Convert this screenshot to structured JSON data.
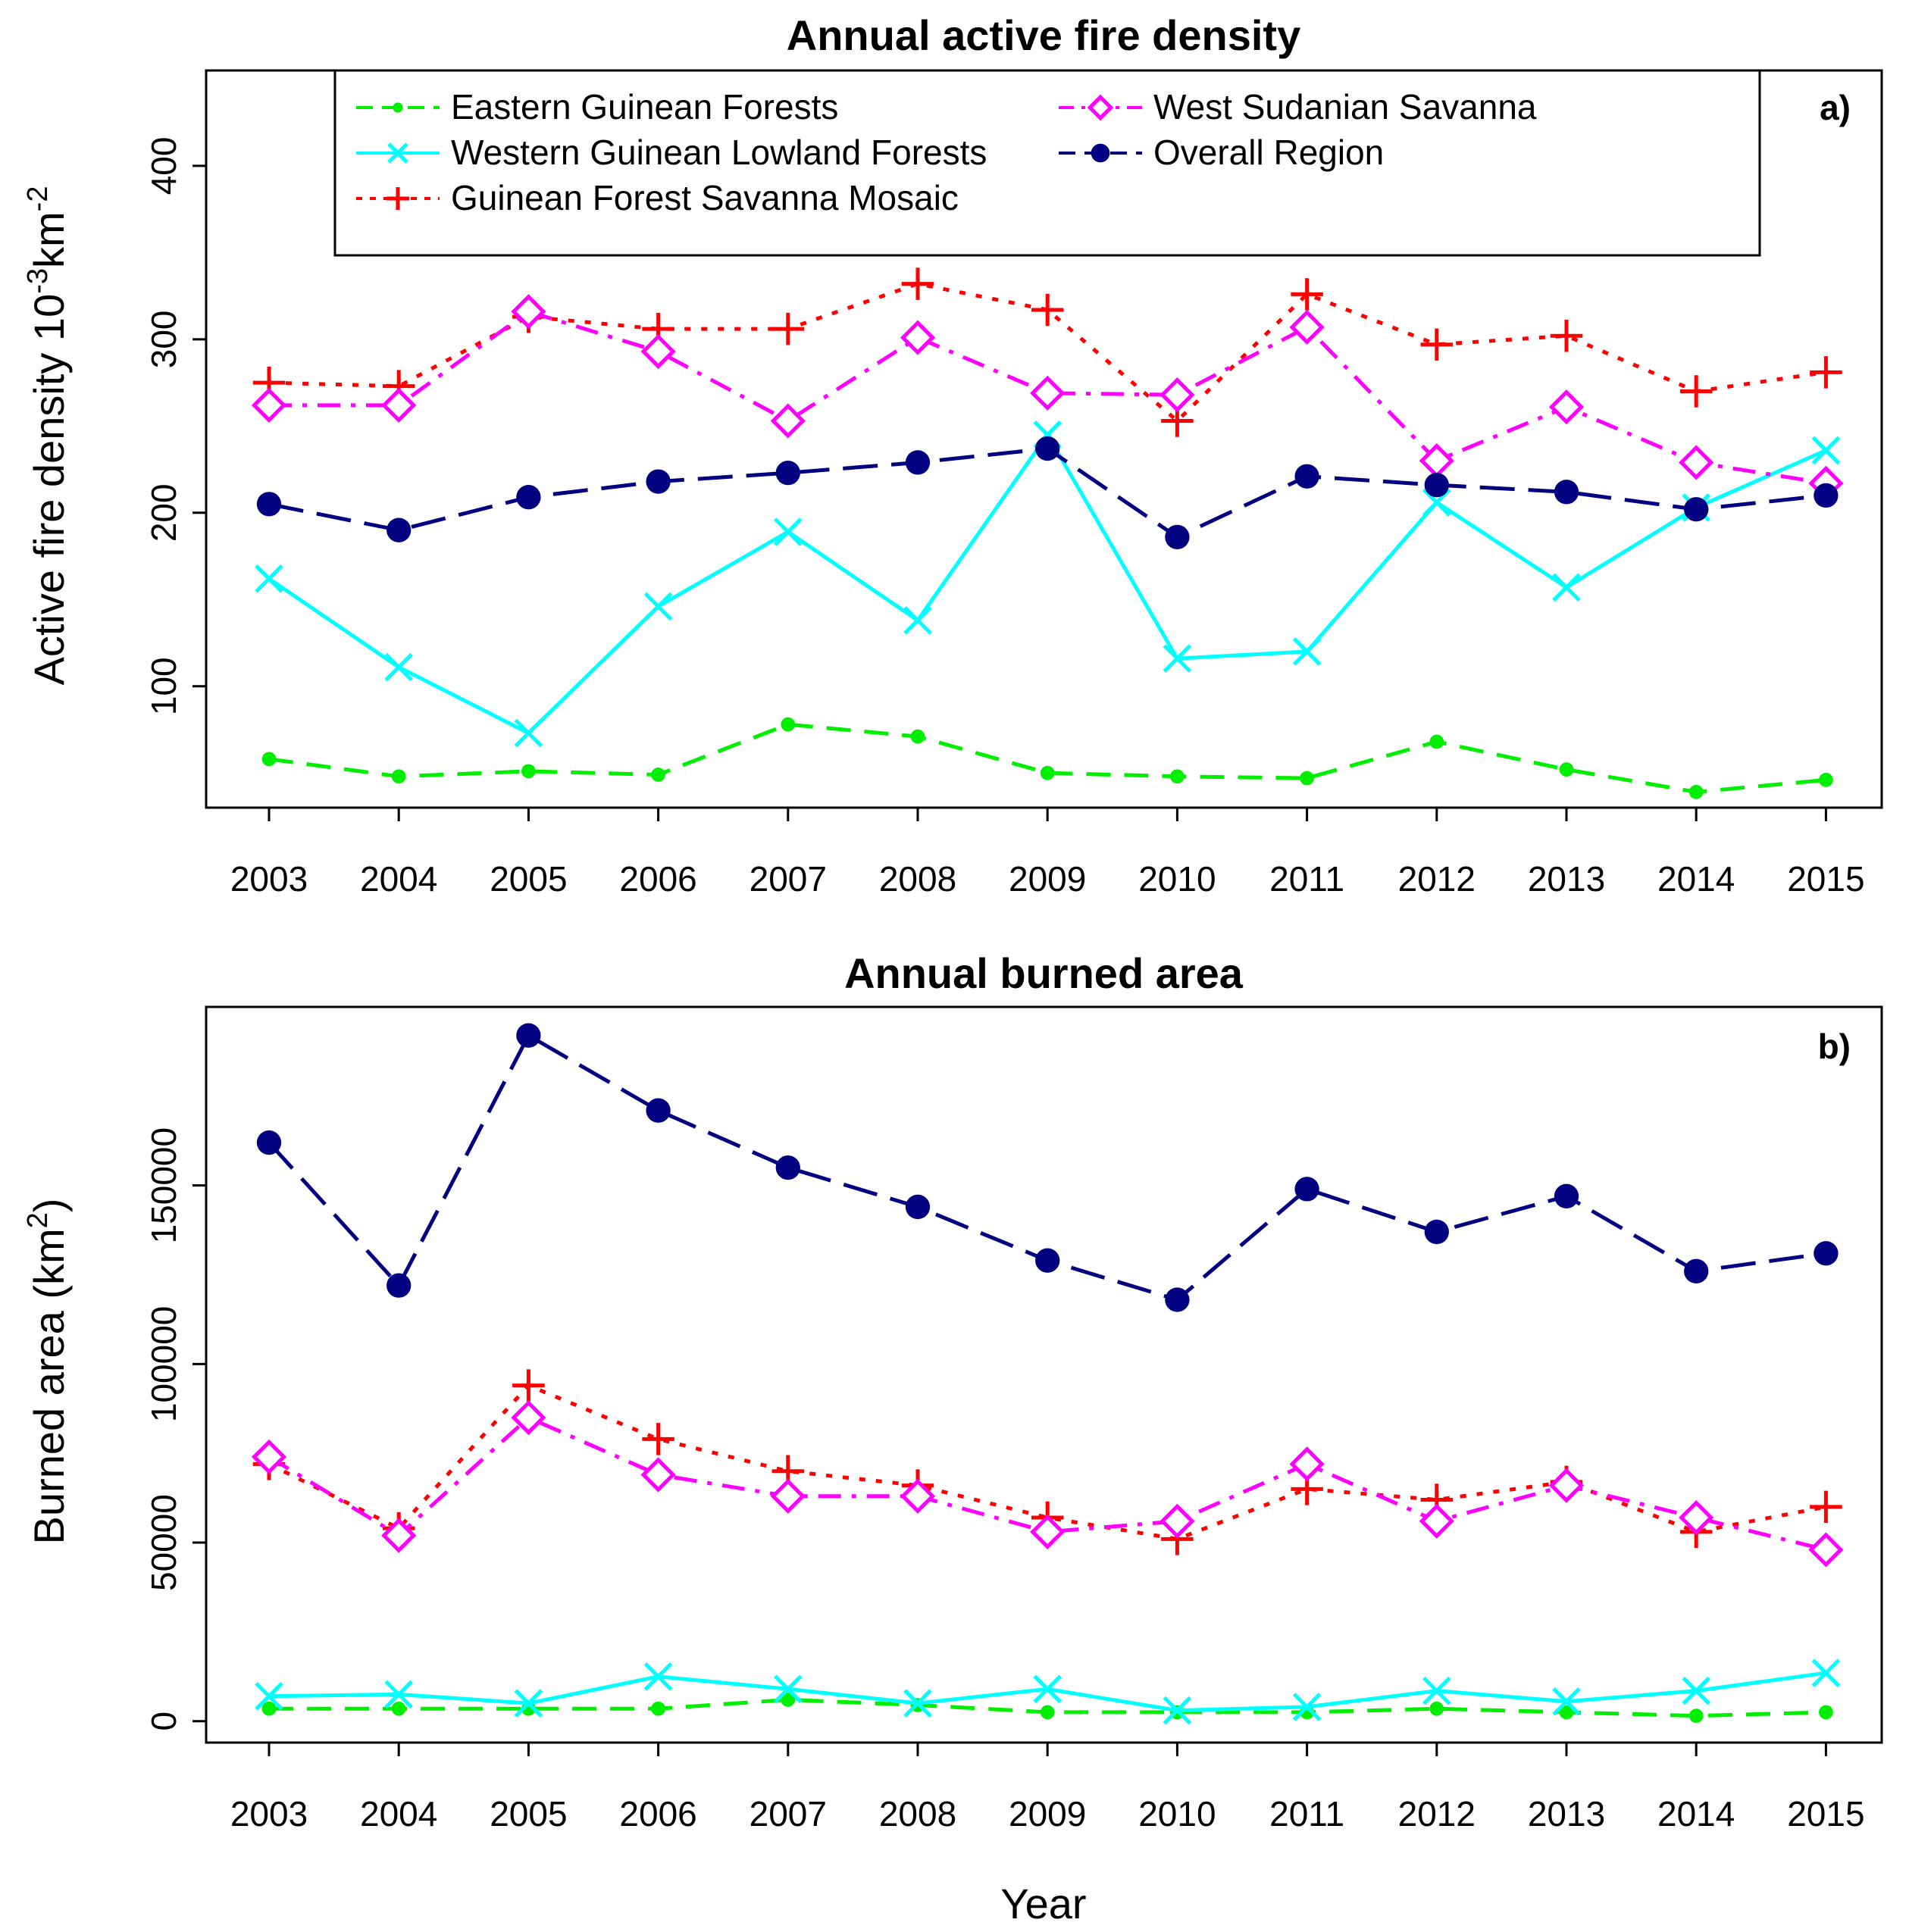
{
  "chart_data": [
    {
      "panel": "a)",
      "type": "line",
      "title": "Annual active fire density",
      "xlabel": "",
      "ylabel": "Active fire density 10^-3 km^-2",
      "ylabel_parts": {
        "main": "Active fire density 10",
        "exp1": "-3",
        "mid": "km",
        "exp2": "-2"
      },
      "categories": [
        "2003",
        "2004",
        "2005",
        "2006",
        "2007",
        "2008",
        "2009",
        "2010",
        "2011",
        "2012",
        "2013",
        "2014",
        "2015"
      ],
      "ylim": [
        30,
        455
      ],
      "yticks": [
        "100",
        "200",
        "300",
        "400"
      ],
      "legend_position": "top",
      "series": [
        {
          "name": "Eastern Guinean Forests",
          "color": "#00ee00",
          "marker": "dot",
          "dash": "dash",
          "values": [
            58,
            48,
            51,
            49,
            78,
            71,
            50,
            48,
            47,
            68,
            52,
            39,
            46
          ]
        },
        {
          "name": "Western Guinean Lowland Forests",
          "color": "#00ffff",
          "marker": "x",
          "dash": "solid",
          "values": [
            162,
            111,
            73,
            146,
            189,
            138,
            245,
            116,
            120,
            206,
            157,
            203,
            236
          ]
        },
        {
          "name": "Guinean Forest Savanna Mosaic",
          "color": "#ff0000",
          "marker": "plus",
          "dash": "dot",
          "values": [
            275,
            273,
            313,
            306,
            306,
            332,
            317,
            253,
            326,
            297,
            302,
            270,
            281
          ]
        },
        {
          "name": "West Sudanian Savanna",
          "color": "#ff00ff",
          "marker": "diamond",
          "dash": "dashdot",
          "values": [
            262,
            262,
            316,
            293,
            253,
            301,
            269,
            268,
            307,
            230,
            261,
            229,
            217
          ]
        },
        {
          "name": "Overall Region",
          "color": "#000080",
          "marker": "bigdot",
          "dash": "longdash",
          "values": [
            205,
            190,
            209,
            218,
            223,
            229,
            237,
            186,
            221,
            216,
            212,
            202,
            210
          ]
        }
      ]
    },
    {
      "panel": "b)",
      "type": "line",
      "title": "Annual burned area",
      "xlabel": "Year",
      "ylabel": "Burned area (km^2)",
      "ylabel_parts": {
        "main": "Burned area (km",
        "exp": "2",
        "end": ")"
      },
      "categories": [
        "2003",
        "2004",
        "2005",
        "2006",
        "2007",
        "2008",
        "2009",
        "2010",
        "2011",
        "2012",
        "2013",
        "2014",
        "2015"
      ],
      "ylim": [
        -6000,
        200000
      ],
      "yticks": [
        "0",
        "50000",
        "100000",
        "150000"
      ],
      "series": [
        {
          "name": "Eastern Guinean Forests",
          "color": "#00ee00",
          "marker": "dot",
          "dash": "dash",
          "values": [
            3500,
            3500,
            3500,
            3500,
            6000,
            4500,
            2500,
            2500,
            2500,
            3500,
            2500,
            1500,
            2500
          ]
        },
        {
          "name": "Western Guinean Lowland Forests",
          "color": "#00ffff",
          "marker": "x",
          "dash": "solid",
          "values": [
            7000,
            7500,
            5000,
            12500,
            9000,
            5000,
            9000,
            3000,
            4000,
            8500,
            5500,
            8500,
            13500
          ]
        },
        {
          "name": "Guinean Forest Savanna Mosaic",
          "color": "#ff0000",
          "marker": "plus",
          "dash": "dot",
          "values": [
            72000,
            54000,
            94000,
            79000,
            70000,
            66000,
            57000,
            51000,
            65000,
            62000,
            67000,
            53000,
            60000
          ]
        },
        {
          "name": "West Sudanian Savanna",
          "color": "#ff00ff",
          "marker": "diamond",
          "dash": "dashdot",
          "values": [
            74000,
            52000,
            85000,
            69000,
            63000,
            63000,
            53000,
            56000,
            72000,
            56000,
            66000,
            57000,
            48000
          ]
        },
        {
          "name": "Overall Region",
          "color": "#000080",
          "marker": "bigdot",
          "dash": "longdash",
          "values": [
            162000,
            122000,
            192000,
            171000,
            155000,
            144000,
            129000,
            118000,
            149000,
            137000,
            147000,
            126000,
            131000
          ]
        }
      ]
    }
  ]
}
